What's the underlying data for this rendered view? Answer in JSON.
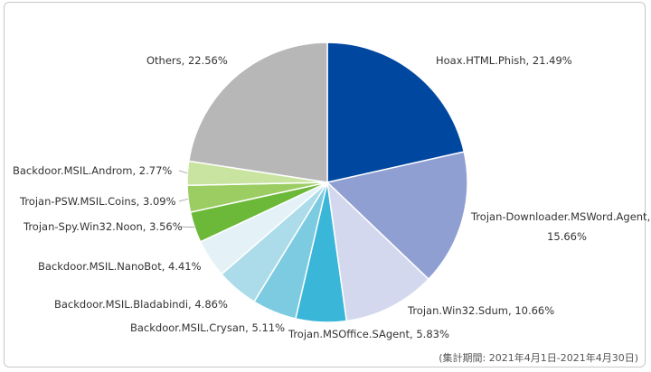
{
  "chart_data": {
    "type": "pie",
    "start_angle_deg": 0,
    "direction": "clockwise",
    "slices": [
      {
        "label": "Hoax.HTML.Phish, 21.49%",
        "value": 21.49,
        "color": "#0047a0"
      },
      {
        "label": "Trojan-Downloader.MSWord.Agent, 15.66%",
        "value": 15.66,
        "color": "#8f9fd2"
      },
      {
        "label": "Trojan.Win32.Sdum, 10.66%",
        "value": 10.66,
        "color": "#d3d8ee"
      },
      {
        "label": "Trojan.MSOffice.SAgent, 5.83%",
        "value": 5.83,
        "color": "#3ab6d8"
      },
      {
        "label": "Backdoor.MSIL.Crysan, 5.11%",
        "value": 5.11,
        "color": "#7ccbe1"
      },
      {
        "label": "Backdoor.MSIL.Bladabindi, 4.86%",
        "value": 4.86,
        "color": "#acdce9"
      },
      {
        "label": "Backdoor.MSIL.NanoBot, 4.41%",
        "value": 4.41,
        "color": "#e4f2f7"
      },
      {
        "label": "Trojan-Spy.Win32.Noon, 3.56%",
        "value": 3.56,
        "color": "#6cb838"
      },
      {
        "label": "Trojan-PSW.MSIL.Coins, 3.09%",
        "value": 3.09,
        "color": "#9bcd63"
      },
      {
        "label": "Backdoor.MSIL.Androm, 2.77%",
        "value": 2.77,
        "color": "#c8e4a0"
      },
      {
        "label": "Others, 22.56%",
        "value": 22.56,
        "color": "#b7b7b7"
      }
    ]
  },
  "footnote": "(集計期間: 2021年4月1日-2021年4月30日)"
}
